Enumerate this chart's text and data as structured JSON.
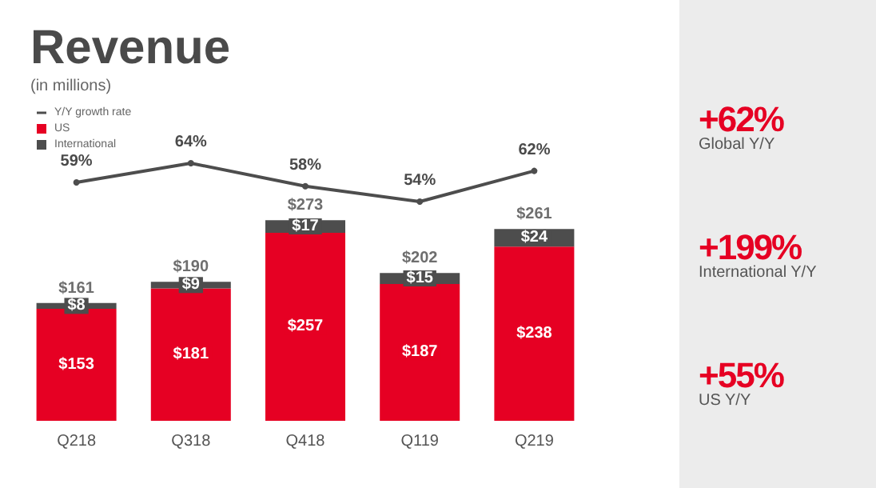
{
  "chart_data": [
    {
      "type": "line",
      "title": "Revenue",
      "subtitle": "(in millions)",
      "categories": [
        null,
        null,
        null,
        null,
        null
      ],
      "series": [
        {
          "name": "Y/Y growth rate",
          "color": "#4d4d4d",
          "values": [
            59,
            64,
            58,
            54,
            62
          ],
          "value_labels": [
            "59%",
            "64%",
            "58%",
            "54%",
            "62%"
          ]
        }
      ],
      "tick_labels": false,
      "grid": false,
      "marker": "circle",
      "line_style": "solid"
    },
    {
      "type": "bar",
      "categories": [
        "Q218",
        "Q318",
        "Q418",
        "Q119",
        "Q219"
      ],
      "stacked": true,
      "series": [
        {
          "name": "US",
          "color": "#e60023",
          "values": [
            153,
            181,
            257,
            187,
            238
          ],
          "value_labels": [
            "$153",
            "$181",
            "$257",
            "$187",
            "$238"
          ]
        },
        {
          "name": "International",
          "color": "#4d4d4d",
          "values": [
            8,
            9,
            17,
            15,
            24
          ],
          "value_labels": [
            "$8",
            "$9",
            "$17",
            "$15",
            "$24"
          ]
        }
      ],
      "totals": [
        "$161",
        "$190",
        "$273",
        "$202",
        "$261"
      ],
      "tick_labels": "x",
      "grid": false,
      "legend": "top left",
      "annotations": [
        "+62%",
        "Global Y/Y",
        "+199%",
        "International Y/Y",
        "+55%",
        "US Y/Y"
      ]
    }
  ]
}
